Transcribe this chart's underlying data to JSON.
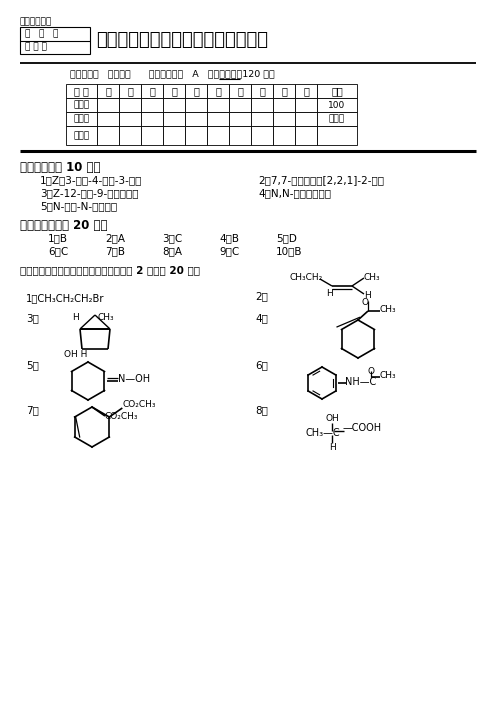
{
  "bg_color": "#ffffff",
  "top_label": "考试中心填写",
  "box_line1": "年   月   日",
  "box_line2": "考 试 用",
  "title": "湖南大学课程考试试卷（参考答案）",
  "course_line1": "课程名称：   有机化学      ；试卷编号：   A   ；考试时间：120 分钟",
  "table_headers": [
    "题 号",
    "一",
    "二",
    "三",
    "四",
    "五",
    "六",
    "七",
    "八",
    "九",
    "十",
    "总分"
  ],
  "row1_label": "应得分",
  "row2_label": "实得分",
  "row3_label": "评卷人",
  "total": "100",
  "score_note": "评分：",
  "sec1_title": "一、命名（共 10 分）",
  "s1_r1_l": "1、Z－3-甲基-4-乙基-3-庚烯",
  "s1_r1_r": "2、7,7-二甲基双环[2,2,1]-2-庚烯",
  "s1_r2_l": "3、Z-12-羟基-9-十八碳烯酸",
  "s1_r2_r": "4、N,N-二甲基甲酰胺",
  "s1_r3": "5、N-乙基-N-丙基苯胺",
  "sec2_title": "二、选择题（共 20 分）",
  "mc_r1": [
    "1、B",
    "2、A",
    "3、C",
    "4、B",
    "5、D"
  ],
  "mc_r2": [
    "6、C",
    "7、B",
    "8、A",
    "9、C",
    "10、B"
  ],
  "mc_x": [
    48,
    105,
    162,
    219,
    276
  ],
  "sec3_title": "三、完成下列反应，写出主要产物（每空 2 分，共 20 分）",
  "lbl1": "1、",
  "chem1": "CH₃CH₂CH₂Br",
  "lbl2": "2、",
  "lbl3": "3、",
  "lbl4": "4、",
  "lbl5": "5、",
  "lbl6": "6、",
  "lbl7": "7、",
  "lbl8": "8、"
}
